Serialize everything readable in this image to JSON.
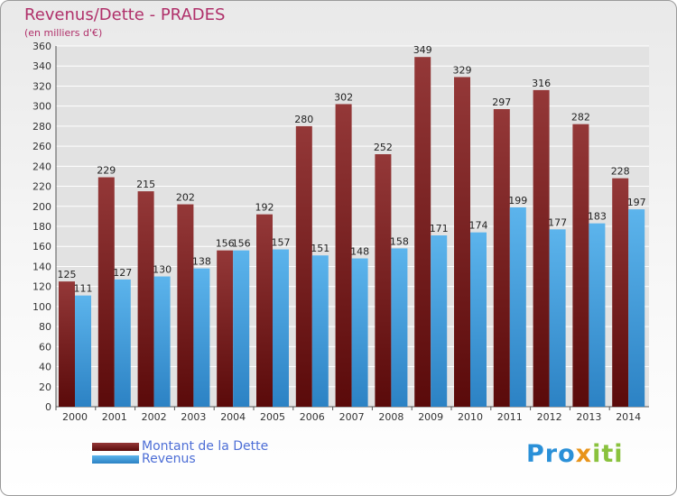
{
  "header": {
    "title": "Revenus/Dette - PRADES",
    "subtitle": "(en milliers d'€)"
  },
  "legend": {
    "debt_label": "Montant de la Dette",
    "revenue_label": "Revenus"
  },
  "logo": {
    "part1": "Pro",
    "part2": "x",
    "part3": "iti"
  },
  "colors": {
    "debt_top": "#943838",
    "debt_bottom": "#5a0a0a",
    "revenue_top": "#5cb4ec",
    "revenue_bottom": "#2c82c4",
    "grid": "#ffffff",
    "axis_text": "#333333",
    "value_text": "#222222"
  },
  "chart_data": {
    "type": "bar",
    "title": "Revenus/Dette - PRADES",
    "ylabel": "(en milliers d'€)",
    "xlabel": "",
    "categories": [
      "2000",
      "2001",
      "2002",
      "2003",
      "2004",
      "2005",
      "2006",
      "2007",
      "2008",
      "2009",
      "2010",
      "2011",
      "2012",
      "2013",
      "2014"
    ],
    "series": [
      {
        "name": "Montant de la Dette",
        "values": [
          125,
          229,
          215,
          202,
          156,
          192,
          280,
          302,
          252,
          349,
          329,
          297,
          316,
          282,
          228
        ]
      },
      {
        "name": "Revenus",
        "values": [
          111,
          127,
          130,
          138,
          156,
          157,
          151,
          148,
          158,
          171,
          174,
          199,
          177,
          183,
          197
        ]
      }
    ],
    "ylim": [
      0,
      360
    ],
    "yticks": [
      0,
      20,
      40,
      60,
      80,
      100,
      120,
      140,
      160,
      180,
      200,
      220,
      240,
      260,
      280,
      300,
      320,
      340,
      360
    ],
    "grid": true,
    "legend_position": "bottom-left"
  }
}
